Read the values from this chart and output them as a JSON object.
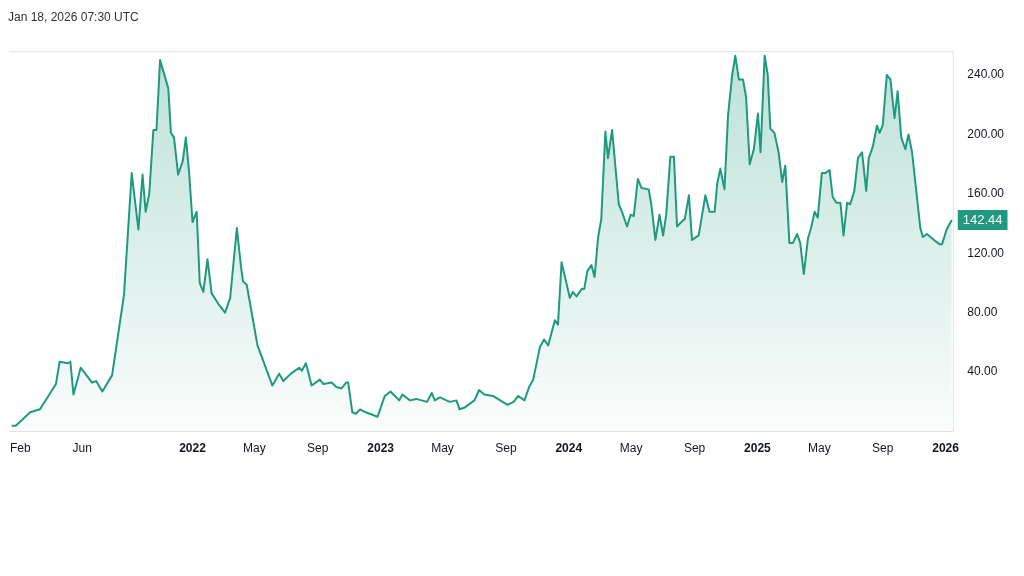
{
  "chart_data": {
    "type": "area",
    "title": "Jan 18, 2026 07:30 UTC",
    "x": [
      "2021-01-15",
      "2021-01-23",
      "2021-02-20",
      "2021-03-11",
      "2021-04-11",
      "2021-04-18",
      "2021-05-04",
      "2021-05-09",
      "2021-05-15",
      "2021-05-29",
      "2021-06-20",
      "2021-06-28",
      "2021-07-10",
      "2021-07-29",
      "2021-08-21",
      "2021-09-05",
      "2021-09-18",
      "2021-09-26",
      "2021-10-02",
      "2021-10-09",
      "2021-10-17",
      "2021-10-23",
      "2021-10-30",
      "2021-11-15",
      "2021-11-20",
      "2021-11-26",
      "2021-12-04",
      "2021-12-13",
      "2021-12-19",
      "2021-12-25",
      "2022-01-01",
      "2022-01-09",
      "2022-01-15",
      "2022-01-22",
      "2022-01-30",
      "2022-02-07",
      "2022-02-20",
      "2022-03-05",
      "2022-03-15",
      "2022-03-28",
      "2022-04-05",
      "2022-04-09",
      "2022-04-16",
      "2022-05-07",
      "2022-06-05",
      "2022-06-18",
      "2022-06-26",
      "2022-07-11",
      "2022-07-27",
      "2022-08-01",
      "2022-08-09",
      "2022-08-20",
      "2022-09-05",
      "2022-09-12",
      "2022-09-28",
      "2022-10-07",
      "2022-10-17",
      "2022-10-26",
      "2022-10-30",
      "2022-11-07",
      "2022-11-14",
      "2022-11-22",
      "2022-12-03",
      "2022-12-26",
      "2023-01-09",
      "2023-01-20",
      "2023-02-06",
      "2023-02-12",
      "2023-02-27",
      "2023-03-11",
      "2023-04-01",
      "2023-04-10",
      "2023-04-16",
      "2023-04-26",
      "2023-05-15",
      "2023-05-28",
      "2023-06-03",
      "2023-06-12",
      "2023-07-02",
      "2023-07-11",
      "2023-07-21",
      "2023-08-07",
      "2023-09-04",
      "2023-09-16",
      "2023-09-25",
      "2023-10-07",
      "2023-10-16",
      "2023-10-24",
      "2023-11-06",
      "2023-11-14",
      "2023-11-22",
      "2023-12-05",
      "2023-12-11",
      "2023-12-18",
      "2024-01-03",
      "2024-01-09",
      "2024-01-16",
      "2024-01-26",
      "2024-01-31",
      "2024-02-06",
      "2024-02-14",
      "2024-02-20",
      "2024-02-27",
      "2024-03-04",
      "2024-03-12",
      "2024-03-17",
      "2024-03-25",
      "2024-04-07",
      "2024-04-13",
      "2024-04-23",
      "2024-04-30",
      "2024-05-06",
      "2024-05-14",
      "2024-05-21",
      "2024-06-04",
      "2024-06-09",
      "2024-06-17",
      "2024-06-25",
      "2024-07-02",
      "2024-07-08",
      "2024-07-16",
      "2024-07-23",
      "2024-07-29",
      "2024-08-09",
      "2024-08-13",
      "2024-08-21",
      "2024-08-27",
      "2024-09-09",
      "2024-09-22",
      "2024-09-30",
      "2024-10-10",
      "2024-10-15",
      "2024-10-21",
      "2024-10-29",
      "2024-11-05",
      "2024-11-13",
      "2024-11-19",
      "2024-11-26",
      "2024-12-04",
      "2024-12-10",
      "2024-12-17",
      "2024-12-25",
      "2025-01-02",
      "2025-01-07",
      "2025-01-15",
      "2025-01-21",
      "2025-01-26",
      "2025-02-03",
      "2025-02-11",
      "2025-02-18",
      "2025-02-24",
      "2025-03-04",
      "2025-03-11",
      "2025-03-19",
      "2025-03-25",
      "2025-04-01",
      "2025-04-09",
      "2025-04-15",
      "2025-04-22",
      "2025-04-28",
      "2025-05-06",
      "2025-05-13",
      "2025-05-21",
      "2025-05-27",
      "2025-06-03",
      "2025-06-11",
      "2025-06-17",
      "2025-06-24",
      "2025-06-30",
      "2025-07-08",
      "2025-07-15",
      "2025-07-23",
      "2025-07-31",
      "2025-08-05",
      "2025-08-13",
      "2025-08-21",
      "2025-08-26",
      "2025-09-01",
      "2025-09-09",
      "2025-09-16",
      "2025-09-24",
      "2025-09-30",
      "2025-10-07",
      "2025-10-15",
      "2025-10-21",
      "2025-10-28",
      "2025-11-13",
      "2025-11-18",
      "2025-11-26",
      "2025-12-13",
      "2025-12-21",
      "2025-12-25",
      "2026-01-03",
      "2026-01-13"
    ],
    "series": [
      {
        "color": "#1f9a7e",
        "values": [
          4,
          4,
          13,
          15,
          32,
          47,
          46,
          47,
          25,
          43,
          33,
          34,
          27,
          38,
          92,
          174,
          136,
          173,
          148,
          160,
          203,
          203,
          250,
          231,
          201,
          198,
          173,
          182,
          198,
          176,
          141,
          148,
          100,
          94,
          116,
          93,
          86,
          80,
          90,
          137,
          111,
          101,
          99,
          58,
          31,
          39,
          34,
          39,
          43,
          41,
          46,
          31,
          35,
          32,
          33,
          30,
          29,
          33,
          33,
          13,
          12,
          15,
          13,
          10,
          24,
          27,
          21,
          25,
          21,
          22,
          20,
          26,
          21,
          23,
          20,
          21,
          15,
          16,
          21,
          28,
          25,
          24,
          18,
          20,
          24,
          21,
          30,
          35,
          57,
          62,
          58,
          75,
          72,
          114,
          90,
          94,
          91,
          96,
          96,
          108,
          112,
          104,
          131,
          143,
          202,
          184,
          203,
          153,
          148,
          138,
          146,
          145,
          170,
          164,
          163,
          153,
          129,
          146,
          132,
          146,
          185,
          185,
          138,
          142,
          143,
          159,
          129,
          132,
          159,
          148,
          148,
          167,
          177,
          163,
          213,
          240,
          253,
          237,
          237,
          225,
          180,
          190,
          214,
          188,
          253,
          240,
          204,
          201,
          188,
          168,
          179,
          127,
          127,
          133,
          127,
          106,
          130,
          137,
          148,
          144,
          174,
          174,
          176,
          158,
          154,
          154,
          132,
          154,
          153,
          162,
          184,
          188,
          162,
          184,
          192,
          206,
          201,
          206,
          240,
          237,
          211,
          229,
          198,
          190,
          200,
          188,
          137,
          131,
          133,
          128,
          126,
          126,
          136,
          142.44
        ]
      }
    ],
    "xlim": [
      "2021-01-10",
      "2026-01-16"
    ],
    "xticks": [
      {
        "value": "2021-02-01",
        "label": "Feb"
      },
      {
        "value": "2021-06-01",
        "label": "Jun"
      },
      {
        "value": "2022-01-01",
        "label": "2022"
      },
      {
        "value": "2022-05-01",
        "label": "May"
      },
      {
        "value": "2022-09-01",
        "label": "Sep"
      },
      {
        "value": "2023-01-01",
        "label": "2023"
      },
      {
        "value": "2023-05-01",
        "label": "May"
      },
      {
        "value": "2023-09-01",
        "label": "Sep"
      },
      {
        "value": "2024-01-01",
        "label": "2024"
      },
      {
        "value": "2024-05-01",
        "label": "May"
      },
      {
        "value": "2024-09-01",
        "label": "Sep"
      },
      {
        "value": "2025-01-01",
        "label": "2025"
      },
      {
        "value": "2025-05-01",
        "label": "May"
      },
      {
        "value": "2025-09-01",
        "label": "Sep"
      },
      {
        "value": "2026-01-01",
        "label": "2026"
      }
    ],
    "ylim": [
      0,
      256
    ],
    "yticks": [
      {
        "value": 40,
        "label": "40.00"
      },
      {
        "value": 80,
        "label": "80.00"
      },
      {
        "value": 120,
        "label": "120.00"
      },
      {
        "value": 160,
        "label": "160.00"
      },
      {
        "value": 200,
        "label": "200.00"
      },
      {
        "value": 240,
        "label": "240.00"
      }
    ],
    "annotations": [
      {
        "text": "142.44",
        "x": "2026-01-13",
        "y": 142.44
      }
    ],
    "grid": false,
    "legend": false
  }
}
